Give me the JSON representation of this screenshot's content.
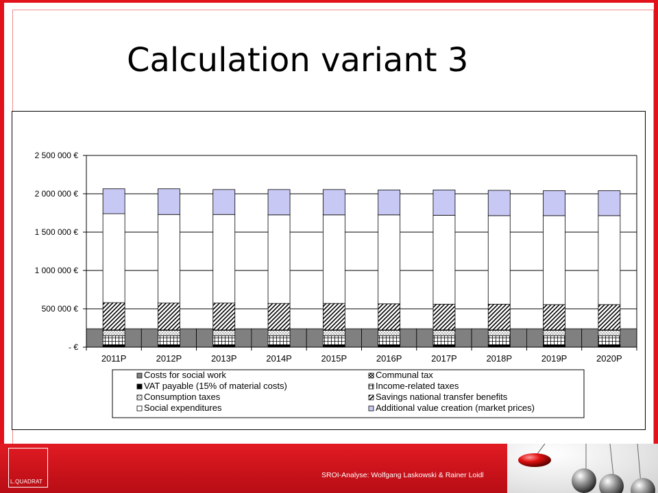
{
  "slide": {
    "title": "Calculation variant 3",
    "footer_credit": "SROI-Analyse: Wolfgang Laskowski & Rainer Loidl",
    "logo_text": "L.QUADRAT"
  },
  "colors": {
    "frame_red": "#e1121b",
    "costs_social_work": "#808080",
    "vat": "#000000",
    "additional_value": "#c8c8f5",
    "plain": "#ffffff"
  },
  "chart_data": {
    "type": "bar",
    "stacked": true,
    "title": "",
    "xlabel": "",
    "ylabel": "",
    "categories": [
      "2011P",
      "2012P",
      "2013P",
      "2014P",
      "2015P",
      "2016P",
      "2017P",
      "2018P",
      "2019P",
      "2020P"
    ],
    "ylim": [
      0,
      2500000
    ],
    "y_ticks": [
      0,
      500000,
      1000000,
      1500000,
      2000000,
      2500000
    ],
    "y_tick_labels": [
      "-   €",
      "500 000 €",
      "1 000 000 €",
      "1 500 000 €",
      "2 000 000 €",
      "2 500 000 €"
    ],
    "grid": true,
    "legend_position": "bottom",
    "legend_order": [
      "Costs for social work",
      "Communal tax",
      "VAT payable (15% of material costs)",
      "Income-related taxes",
      "Consumption taxes",
      "Savings national transfer benefits",
      "Social expenditures",
      "Additional value creation (market prices)"
    ],
    "series": [
      {
        "name": "VAT payable (15% of material costs)",
        "pattern": "solid-black",
        "values": [
          30000,
          30000,
          30000,
          30000,
          30000,
          30000,
          30000,
          30000,
          30000,
          30000
        ]
      },
      {
        "name": "Income-related taxes",
        "pattern": "grid",
        "values": [
          120000,
          120000,
          120000,
          120000,
          120000,
          120000,
          120000,
          120000,
          120000,
          120000
        ]
      },
      {
        "name": "Consumption taxes",
        "pattern": "dots",
        "values": [
          70000,
          70000,
          70000,
          70000,
          70000,
          70000,
          70000,
          70000,
          70000,
          70000
        ]
      },
      {
        "name": "Communal tax",
        "pattern": "checker",
        "values": [
          5000,
          5000,
          5000,
          5000,
          5000,
          5000,
          5000,
          5000,
          5000,
          5000
        ]
      },
      {
        "name": "Savings national transfer benefits",
        "pattern": "diagonal",
        "values": [
          355000,
          350000,
          350000,
          345000,
          345000,
          340000,
          335000,
          335000,
          330000,
          330000
        ]
      },
      {
        "name": "Social expenditures",
        "pattern": "plain",
        "values": [
          1160000,
          1155000,
          1155000,
          1155000,
          1155000,
          1160000,
          1160000,
          1155000,
          1160000,
          1160000
        ]
      },
      {
        "name": "Additional value creation (market prices)",
        "pattern": "lavender",
        "values": [
          325000,
          335000,
          325000,
          330000,
          330000,
          325000,
          330000,
          330000,
          325000,
          325000
        ]
      }
    ],
    "between_bars_series": {
      "name": "Costs for social work",
      "pattern": "grey",
      "values": [
        240000,
        240000,
        240000,
        240000,
        240000,
        240000,
        240000,
        240000,
        240000,
        240000
      ]
    }
  }
}
